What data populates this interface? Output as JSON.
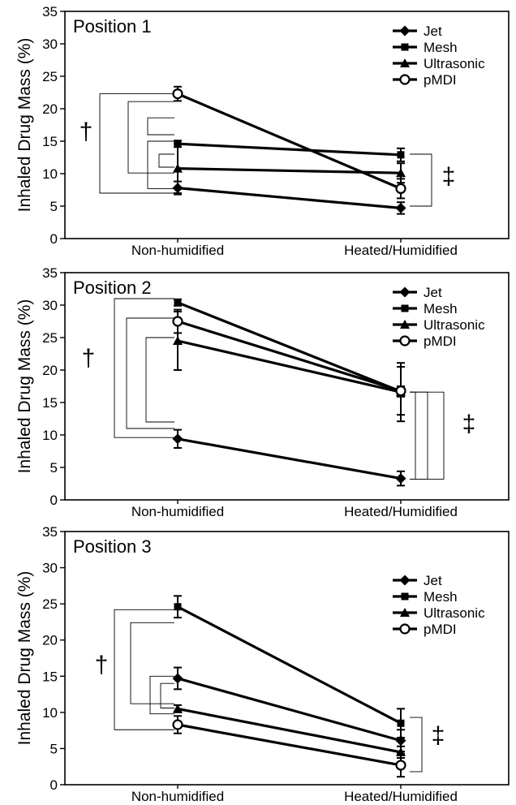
{
  "chart_data": [
    {
      "type": "line",
      "title": "Position 1",
      "ylabel": "Inhaled Drug Mass (%)",
      "categories": [
        "Non-humidified",
        "Heated/Humidified"
      ],
      "ylim": [
        0,
        35
      ],
      "yticks": [
        0,
        5,
        10,
        15,
        20,
        25,
        30,
        35
      ],
      "legend_position": "top-right",
      "series": [
        {
          "name": "Jet",
          "marker": "diamond",
          "values": [
            7.8,
            4.7
          ],
          "errors": [
            1.0,
            0.9
          ]
        },
        {
          "name": "Mesh",
          "marker": "square",
          "values": [
            14.6,
            12.9
          ],
          "errors": [
            0.5,
            1.0
          ]
        },
        {
          "name": "Ultrasonic",
          "marker": "triangle",
          "values": [
            10.8,
            10.1
          ],
          "errors": [
            3.8,
            1.5
          ]
        },
        {
          "name": "pMDI",
          "marker": "circle",
          "values": [
            22.3,
            7.7
          ],
          "errors": [
            1.1,
            1.5
          ]
        }
      ],
      "annotations": [
        "†",
        "‡"
      ]
    },
    {
      "type": "line",
      "title": "Position 2",
      "ylabel": "Inhaled Drug Mass (%)",
      "categories": [
        "Non-humidified",
        "Heated/Humidified"
      ],
      "ylim": [
        0,
        35
      ],
      "yticks": [
        0,
        5,
        10,
        15,
        20,
        25,
        30,
        35
      ],
      "legend_position": "top-right",
      "series": [
        {
          "name": "Jet",
          "marker": "diamond",
          "values": [
            9.4,
            3.3
          ],
          "errors": [
            1.4,
            1.1
          ]
        },
        {
          "name": "Mesh",
          "marker": "square",
          "values": [
            30.4,
            16.7
          ],
          "errors": [
            0.5,
            0.8
          ]
        },
        {
          "name": "Ultrasonic",
          "marker": "triangle",
          "values": [
            24.5,
            16.6
          ],
          "errors": [
            4.5,
            4.5
          ]
        },
        {
          "name": "pMDI",
          "marker": "circle",
          "values": [
            27.5,
            16.8
          ],
          "errors": [
            1.8,
            3.7
          ]
        }
      ],
      "annotations": [
        "†",
        "‡"
      ]
    },
    {
      "type": "line",
      "title": "Position 3",
      "ylabel": "Inhaled Drug Mass (%)",
      "categories": [
        "Non-humidified",
        "Heated/Humidified"
      ],
      "ylim": [
        0,
        35
      ],
      "yticks": [
        0,
        5,
        10,
        15,
        20,
        25,
        30,
        35
      ],
      "legend_position": "right",
      "series": [
        {
          "name": "Jet",
          "marker": "diamond",
          "values": [
            14.7,
            6.1
          ],
          "errors": [
            1.5,
            1.5
          ]
        },
        {
          "name": "Mesh",
          "marker": "square",
          "values": [
            24.6,
            8.5
          ],
          "errors": [
            1.5,
            2.0
          ]
        },
        {
          "name": "Ultrasonic",
          "marker": "triangle",
          "values": [
            10.5,
            4.5
          ],
          "errors": [
            0.5,
            0.8
          ]
        },
        {
          "name": "pMDI",
          "marker": "circle",
          "values": [
            8.3,
            2.7
          ],
          "errors": [
            1.2,
            1.6
          ]
        }
      ],
      "annotations": [
        "†",
        "‡"
      ]
    }
  ]
}
